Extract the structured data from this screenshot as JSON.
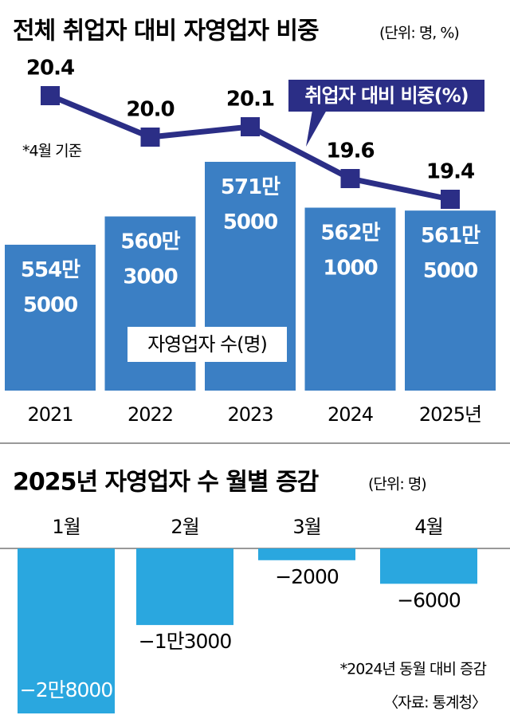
{
  "chart_data": [
    {
      "type": "combo",
      "title": "전체 취업자 대비 자영업자 비중",
      "subtitle": "(단위: 명, %)",
      "annotation": "*4월 기준",
      "categories": [
        "2021",
        "2022",
        "2023",
        "2024",
        "2025년"
      ],
      "series": [
        {
          "name": "자영업자 수(명)",
          "type": "bar",
          "color": "#3b7fc4",
          "values": [
            5545000,
            5603000,
            5715000,
            5621000,
            5615000
          ],
          "value_labels": [
            "554만\n5000",
            "560만\n3000",
            "571만\n5000",
            "562만\n1000",
            "561만\n5000"
          ]
        },
        {
          "name": "취업자 대비 비중(%)",
          "type": "line",
          "color": "#2b2e86",
          "values": [
            20.4,
            20.0,
            20.1,
            19.6,
            19.4
          ],
          "value_labels": [
            "20.4",
            "20.0",
            "20.1",
            "19.6",
            "19.4"
          ]
        }
      ]
    },
    {
      "type": "bar",
      "title": "2025년 자영업자 수 월별 증감",
      "subtitle": "(단위: 명)",
      "annotation": "*2024년 동월 대비 증감",
      "source": "〈자료: 통계청〉",
      "categories": [
        "1월",
        "2월",
        "3월",
        "4월"
      ],
      "color": "#2aa7df",
      "values": [
        -28000,
        -13000,
        -2000,
        -6000
      ],
      "value_labels": [
        "−2만8000",
        "−1만3000",
        "−2000",
        "−6000"
      ]
    }
  ]
}
